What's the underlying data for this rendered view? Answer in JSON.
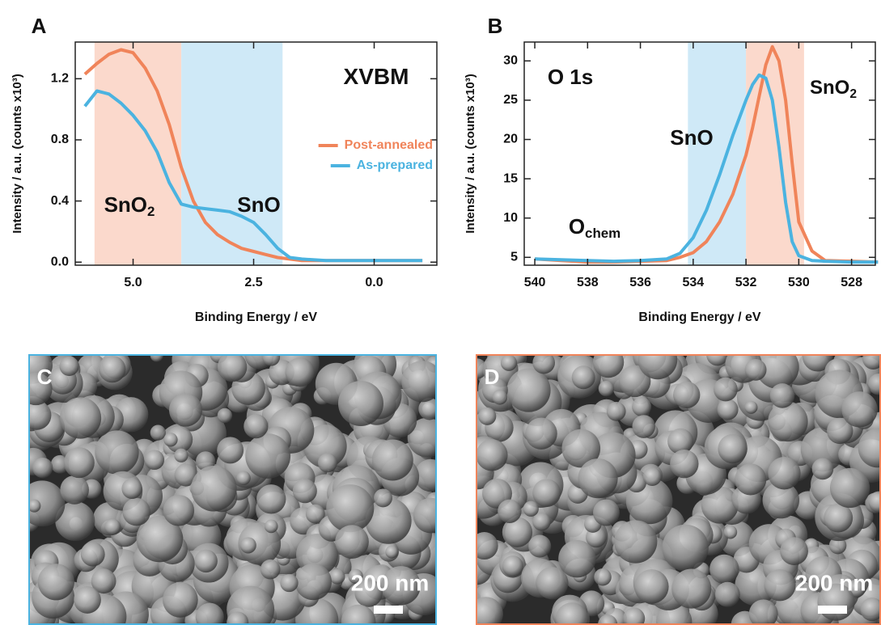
{
  "chart_data": [
    {
      "type": "line",
      "panel_label": "A",
      "x_label": "Binding Energy / eV",
      "y_label": "Intensity / a.u. (counts x10³)",
      "xlim": [
        6.2,
        -1.3
      ],
      "ylim": [
        -0.02,
        1.44
      ],
      "xticks": [
        {
          "value": 5,
          "label": "5.0"
        },
        2.5,
        {
          "value": 0,
          "label": "0.0"
        }
      ],
      "yticks": [
        {
          "value": 0,
          "label": "0.0"
        },
        0.4,
        0.8,
        1.2
      ],
      "regions": [
        {
          "from": 5.8,
          "to": 4.0,
          "color": "#fbd9cc"
        },
        {
          "from": 4.0,
          "to": 1.9,
          "color": "#cfe9f7"
        }
      ],
      "annotations": [
        {
          "text": "XVBM"
        },
        {
          "text": "SnO",
          "sub": "2"
        },
        {
          "text": "SnO"
        }
      ],
      "legend": "right",
      "x": [
        6.0,
        5.75,
        5.5,
        5.25,
        5.0,
        4.75,
        4.5,
        4.25,
        4.0,
        3.75,
        3.5,
        3.25,
        3.0,
        2.75,
        2.5,
        2.25,
        2.0,
        1.75,
        1.5,
        1.0,
        0.5,
        0.0,
        -0.5,
        -1.0
      ],
      "series": [
        {
          "name": "Post-annealed",
          "color": "#f0845a",
          "values": [
            1.23,
            1.3,
            1.36,
            1.39,
            1.37,
            1.27,
            1.12,
            0.9,
            0.62,
            0.4,
            0.26,
            0.18,
            0.13,
            0.09,
            0.07,
            0.05,
            0.03,
            0.02,
            0.01,
            0.01,
            0.01,
            0.01,
            0.01,
            0.01
          ]
        },
        {
          "name": "As-prepared",
          "color": "#4bb3e0",
          "values": [
            1.02,
            1.12,
            1.1,
            1.04,
            0.96,
            0.86,
            0.72,
            0.52,
            0.38,
            0.36,
            0.35,
            0.34,
            0.33,
            0.3,
            0.26,
            0.18,
            0.09,
            0.03,
            0.02,
            0.01,
            0.01,
            0.01,
            0.01,
            0.01
          ]
        }
      ]
    },
    {
      "type": "line",
      "panel_label": "B",
      "x_label": "Binding Energy / eV",
      "y_label": "Intensity / a.u. (counts x10³)",
      "xlim": [
        540.4,
        527.1
      ],
      "ylim": [
        4,
        32.4
      ],
      "xticks": [
        540,
        538,
        536,
        534,
        532,
        530,
        528
      ],
      "yticks": [
        5,
        10,
        15,
        20,
        25,
        30
      ],
      "regions": [
        {
          "from": 534.2,
          "to": 532.0,
          "color": "#cfe9f7"
        },
        {
          "from": 532.0,
          "to": 529.8,
          "color": "#fbd9cc"
        }
      ],
      "annotations": [
        {
          "text": "O 1s"
        },
        {
          "text": "SnO"
        },
        {
          "text": "SnO",
          "sub": "2"
        },
        {
          "text": "O",
          "sub": "chem"
        }
      ],
      "x": [
        540,
        539,
        538,
        537,
        536,
        535,
        534.5,
        534,
        533.5,
        533,
        532.5,
        532,
        531.75,
        531.5,
        531.25,
        531,
        530.75,
        530.5,
        530.25,
        530,
        529.5,
        529,
        528,
        527
      ],
      "series": [
        {
          "name": "Post-annealed",
          "color": "#f0845a",
          "values": [
            4.8,
            4.6,
            4.4,
            4.4,
            4.5,
            4.6,
            5.0,
            5.6,
            7.0,
            9.5,
            13,
            18,
            21.5,
            25.5,
            29.5,
            31.8,
            30,
            25,
            17,
            9.5,
            5.8,
            4.6,
            4.5,
            4.4
          ]
        },
        {
          "name": "As-prepared",
          "color": "#4bb3e0",
          "values": [
            4.8,
            4.7,
            4.6,
            4.5,
            4.6,
            4.8,
            5.5,
            7.5,
            11,
            15.5,
            20.5,
            25,
            27,
            28.2,
            27.8,
            25,
            19,
            12,
            7,
            5.2,
            4.6,
            4.5,
            4.4,
            4.4
          ]
        }
      ]
    }
  ],
  "images": [
    {
      "label": "C",
      "scale_bar": "200 nm",
      "border": "#4bb3e0"
    },
    {
      "label": "D",
      "scale_bar": "200 nm",
      "border": "#f0845a"
    }
  ]
}
